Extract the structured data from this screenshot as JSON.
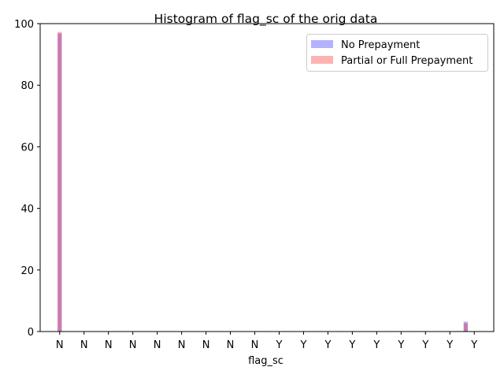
{
  "chart_data": {
    "type": "bar",
    "title": "Histogram of flag_sc of the orig data",
    "xlabel": "flag_sc",
    "ylabel": "",
    "categories": [
      "N",
      "N",
      "N",
      "N",
      "N",
      "N",
      "N",
      "N",
      "N",
      "Y",
      "Y",
      "Y",
      "Y",
      "Y",
      "Y",
      "Y",
      "Y",
      "Y"
    ],
    "ylim": [
      0,
      100
    ],
    "yticks": [
      0,
      20,
      40,
      60,
      80,
      100
    ],
    "series": [
      {
        "name": "No Prepayment",
        "color": "#0000ff",
        "alpha": 0.3,
        "bins": [
          {
            "x": 0.0,
            "value": 96.8
          },
          {
            "x": 16.65,
            "value": 3.2
          }
        ]
      },
      {
        "name": "Partial or Full Prepayment",
        "color": "#ff0000",
        "alpha": 0.3,
        "bins": [
          {
            "x": 0.0,
            "value": 97.3
          },
          {
            "x": 16.65,
            "value": 2.7
          }
        ]
      }
    ],
    "legend_position": "top-right",
    "grid": false
  }
}
